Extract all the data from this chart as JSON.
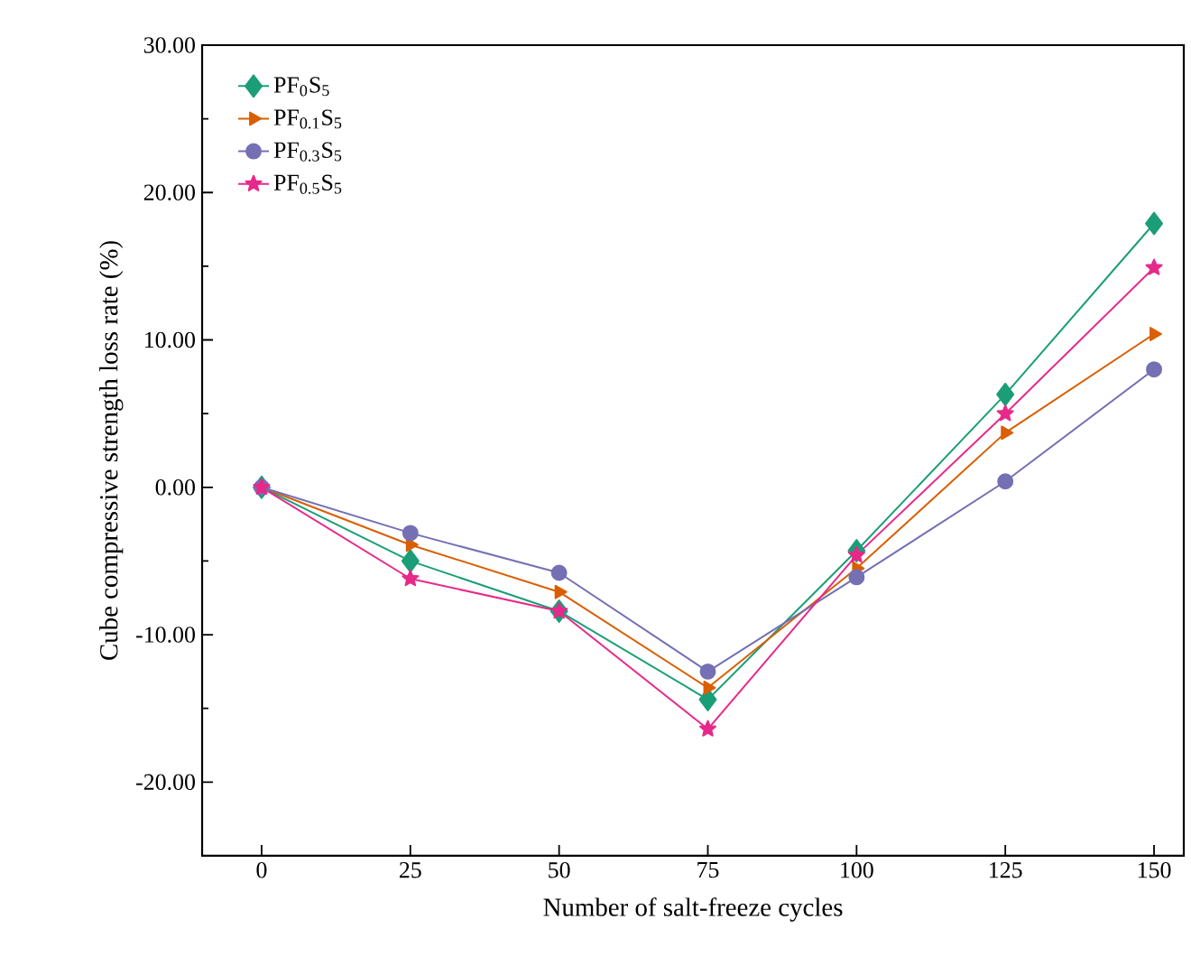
{
  "chart_data": {
    "type": "line",
    "xlabel": "Number of salt-freeze cycles",
    "ylabel": "Cube compressive strength loss rate (%)",
    "x": [
      0,
      25,
      50,
      75,
      100,
      125,
      150
    ],
    "xlim": [
      -10,
      155
    ],
    "xticks": [
      0,
      25,
      50,
      75,
      100,
      125,
      150
    ],
    "ylim": [
      -25,
      30
    ],
    "yticks": [
      {
        "value": -20,
        "label": "-20.00"
      },
      {
        "value": -10,
        "label": "-10.00"
      },
      {
        "value": 0,
        "label": "0.00"
      },
      {
        "value": 10,
        "label": "10.00"
      },
      {
        "value": 20,
        "label": "20.00"
      },
      {
        "value": 30,
        "label": "30.00"
      }
    ],
    "legend": "top left",
    "grid": false,
    "line_style": "solid",
    "series": [
      {
        "name": "PF$_{0}$S$_{5}$",
        "color": "#1b9e77",
        "marker": "diamond",
        "values": [
          0,
          -5.0,
          -8.4,
          -14.4,
          -4.3,
          6.3,
          17.9
        ]
      },
      {
        "name": "PF$_{0.1}$S$_{5}$",
        "color": "#d95f02",
        "marker": "triangle",
        "values": [
          0,
          -3.9,
          -7.1,
          -13.6,
          -5.5,
          3.7,
          10.4
        ]
      },
      {
        "name": "PF$_{0.3}$S$_{5}$",
        "color": "#7570b3",
        "marker": "circle",
        "values": [
          0,
          -3.1,
          -5.8,
          -12.5,
          -6.1,
          0.4,
          8.0
        ]
      },
      {
        "name": "PF$_{0.5}$S$_{5}$",
        "color": "#e7298a",
        "marker": "star",
        "values": [
          0,
          -6.2,
          -8.4,
          -16.4,
          -4.6,
          5.0,
          14.9
        ]
      }
    ]
  }
}
